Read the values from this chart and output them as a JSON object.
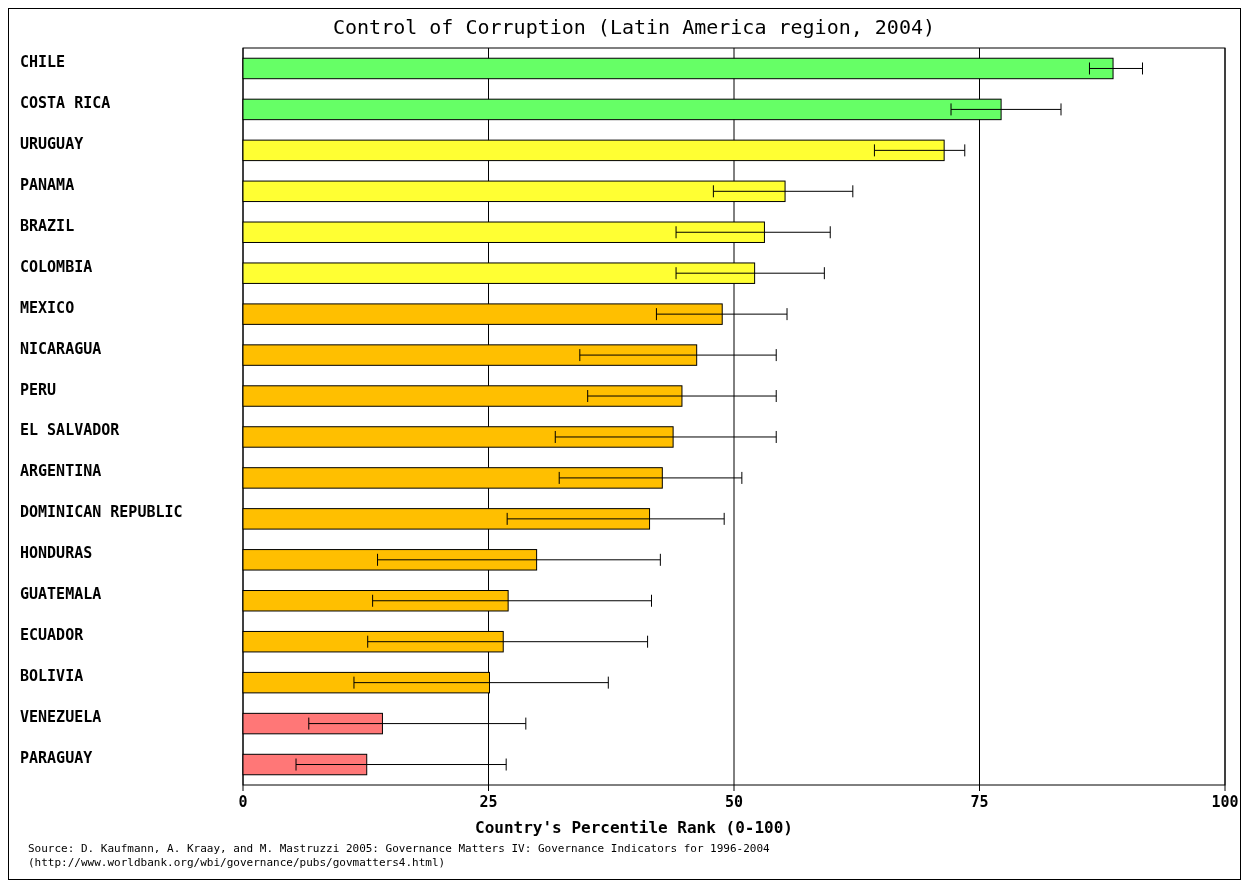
{
  "chart_data": {
    "type": "bar",
    "orientation": "horizontal",
    "title": "Control of Corruption (Latin America region, 2004)",
    "xlabel": "Country's Percentile Rank (0-100)",
    "categories": [
      "CHILE",
      "COSTA RICA",
      "URUGUAY",
      "PANAMA",
      "BRAZIL",
      "COLOMBIA",
      "MEXICO",
      "NICARAGUA",
      "PERU",
      "EL SALVADOR",
      "ARGENTINA",
      "DOMINICAN REPUBLIC",
      "HONDURAS",
      "GUATEMALA",
      "ECUADOR",
      "BOLIVIA",
      "VENEZUELA",
      "PARAGUAY"
    ],
    "values": [
      88.6,
      77.2,
      71.4,
      55.2,
      53.1,
      52.1,
      48.8,
      46.2,
      44.7,
      43.8,
      42.7,
      41.4,
      29.9,
      27.0,
      26.5,
      25.1,
      14.2,
      12.6
    ],
    "errors": [
      [
        86.2,
        91.6
      ],
      [
        72.1,
        83.3
      ],
      [
        64.3,
        73.5
      ],
      [
        47.9,
        62.1
      ],
      [
        44.1,
        59.8
      ],
      [
        44.1,
        59.2
      ],
      [
        42.1,
        55.4
      ],
      [
        34.3,
        54.3
      ],
      [
        35.1,
        54.3
      ],
      [
        31.8,
        54.3
      ],
      [
        32.2,
        50.8
      ],
      [
        26.9,
        49.0
      ],
      [
        13.7,
        42.5
      ],
      [
        13.2,
        41.6
      ],
      [
        12.7,
        41.2
      ],
      [
        11.3,
        37.2
      ],
      [
        6.7,
        28.8
      ],
      [
        5.4,
        26.8
      ]
    ],
    "colors": [
      "#66ff66",
      "#66ff66",
      "#ffff33",
      "#ffff33",
      "#ffff33",
      "#ffff33",
      "#ffbf00",
      "#ffbf00",
      "#ffbf00",
      "#ffbf00",
      "#ffbf00",
      "#ffbf00",
      "#ffbf00",
      "#ffbf00",
      "#ffbf00",
      "#ffbf00",
      "#ff7777",
      "#ff7777"
    ],
    "xlim": [
      0,
      100
    ],
    "xticks": [
      0,
      25,
      50,
      75,
      100
    ],
    "grid": "x",
    "annotations": [
      "Source: D. Kaufmann, A. Kraay, and M. Mastruzzi 2005: Governance Matters IV: Governance Indicators for 1996-2004",
      "(http://www.worldbank.org/wbi/governance/pubs/govmatters4.html)"
    ]
  }
}
